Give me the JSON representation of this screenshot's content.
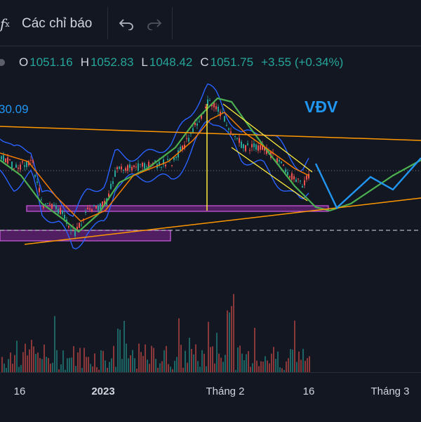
{
  "toolbar": {
    "fx_icon": "fx-icon",
    "indicators_label": "Các chỉ báo",
    "undo_icon": "undo-icon",
    "redo_icon": "redo-icon"
  },
  "ohlc": {
    "o_key": "O",
    "o_val": "1051.16",
    "h_key": "H",
    "h_val": "1052.83",
    "l_key": "L",
    "l_val": "1048.42",
    "c_key": "C",
    "c_val": "1051.75",
    "change": "+3.55 (+0.34%)",
    "color_up": "#26a69a"
  },
  "annotations": {
    "price_label": "30.09",
    "wave_label": "VĐV"
  },
  "axis": {
    "ticks": [
      "16",
      "2023",
      "Tháng 2",
      "16",
      "Tháng 3"
    ]
  },
  "colors": {
    "background": "#131722",
    "bollinger": "#2962ff",
    "ema_green": "#4caf50",
    "ema_orange": "#f57c00",
    "trendline": "#ff9800",
    "zone": "#9c27b0",
    "projection": "#2196f3",
    "up": "#26a69a",
    "down": "#ef5350"
  }
}
